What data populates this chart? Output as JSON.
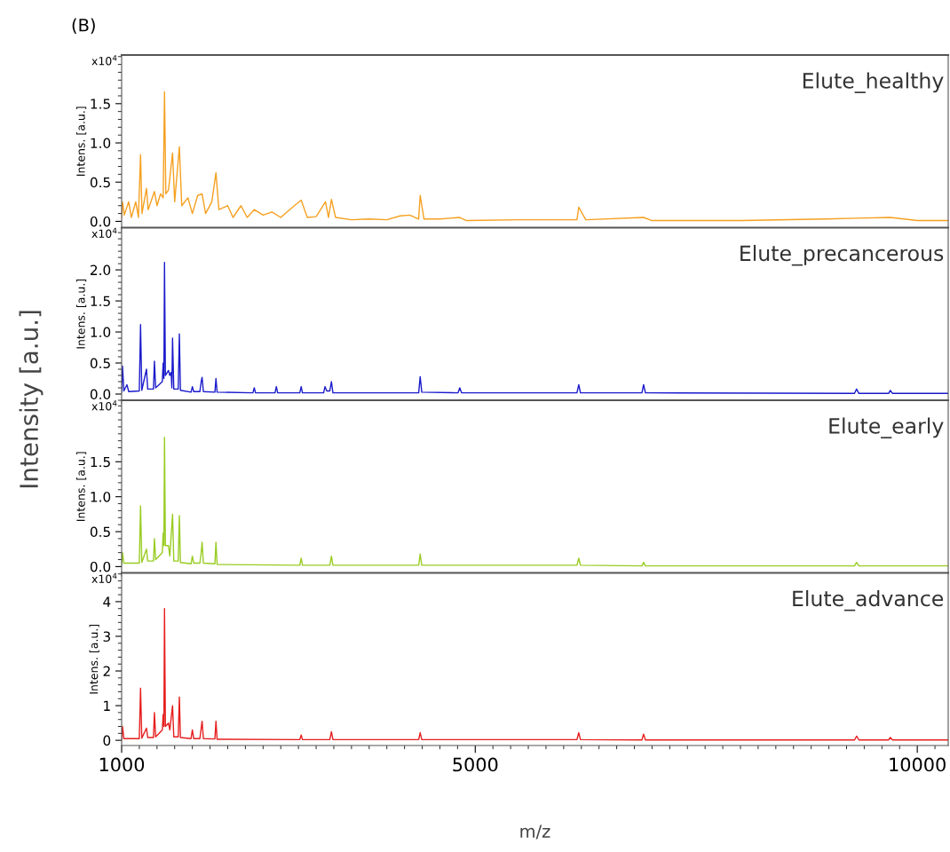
{
  "chart_data": [
    {
      "type": "line",
      "ylabel": "Intens. [a.u.]",
      "annotations": [
        "x10$^{4}$",
        "(B)",
        "Intensity [a.u.]"
      ],
      "xlim": [
        1000,
        10350
      ],
      "ylim": [
        -0.08,
        2.12
      ],
      "yticks": [
        {
          "value": 0,
          "label": "0.0"
        },
        {
          "value": 0.5,
          "label": "0.5"
        },
        {
          "value": 1.0,
          "label": "1.0"
        },
        {
          "value": 1.5,
          "label": "1.5"
        }
      ],
      "tick_labels": "y",
      "series": [
        {
          "name": "Elute_healthy",
          "color": "#f5a020",
          "x": [
            1000,
            1010,
            1030,
            1080,
            1110,
            1160,
            1190,
            1214,
            1230,
            1281,
            1300,
            1371,
            1400,
            1440,
            1470,
            1485,
            1500,
            1530,
            1576,
            1600,
            1653,
            1680,
            1750,
            1800,
            1860,
            1910,
            1950,
            2020,
            2067,
            2100,
            2200,
            2260,
            2350,
            2420,
            2500,
            2600,
            2700,
            2800,
            2900,
            3031,
            3100,
            3200,
            3306,
            3340,
            3373,
            3420,
            3600,
            3800,
            4000,
            4150,
            4260,
            4360,
            4377,
            4420,
            4600,
            4825,
            4900,
            5500,
            6150,
            6171,
            6250,
            6904,
            7000,
            8000,
            8962,
            9313,
            9695,
            10000,
            10350
          ],
          "values": [
            0.05,
            0.25,
            0.08,
            0.25,
            0.05,
            0.25,
            0.05,
            0.85,
            0.1,
            0.42,
            0.15,
            0.38,
            0.2,
            0.35,
            0.3,
            1.65,
            0.35,
            0.4,
            0.87,
            0.25,
            0.95,
            0.2,
            0.3,
            0.1,
            0.33,
            0.35,
            0.1,
            0.25,
            0.62,
            0.15,
            0.2,
            0.05,
            0.2,
            0.05,
            0.15,
            0.08,
            0.12,
            0.05,
            0.15,
            0.27,
            0.05,
            0.06,
            0.25,
            0.05,
            0.28,
            0.05,
            0.02,
            0.03,
            0.02,
            0.07,
            0.08,
            0.03,
            0.33,
            0.03,
            0.03,
            0.05,
            0.01,
            0.02,
            0.02,
            0.18,
            0.02,
            0.05,
            0.01,
            0.01,
            0.03,
            0.04,
            0.05,
            0.01,
            0.01
          ]
        }
      ]
    },
    {
      "type": "line",
      "ylabel": "Intens. [a.u.]",
      "annotations": [
        "x10$^{4}$"
      ],
      "xlim": [
        1000,
        10350
      ],
      "ylim": [
        -0.1,
        2.68
      ],
      "yticks": [
        {
          "value": 0,
          "label": "0.0"
        },
        {
          "value": 0.5,
          "label": "0.5"
        },
        {
          "value": 1.0,
          "label": "1.0"
        },
        {
          "value": 1.5,
          "label": "1.5"
        },
        {
          "value": 2.0,
          "label": "2.0"
        }
      ],
      "tick_labels": "y",
      "series": [
        {
          "name": "Elute_precancerous",
          "color": "#1a1acc",
          "x": [
            1000,
            1010,
            1025,
            1060,
            1080,
            1200,
            1214,
            1228,
            1281,
            1295,
            1360,
            1371,
            1385,
            1460,
            1470,
            1478,
            1485,
            1495,
            1530,
            1545,
            1560,
            1568,
            1576,
            1590,
            1640,
            1653,
            1665,
            1785,
            1800,
            1815,
            1885,
            1900,
            1910,
            1925,
            2055,
            2067,
            2080,
            2485,
            2500,
            2515,
            2735,
            2750,
            2765,
            3015,
            3031,
            3045,
            3285,
            3300,
            3320,
            3355,
            3373,
            3390,
            4360,
            4377,
            4395,
            4805,
            4825,
            4845,
            6150,
            6171,
            6190,
            6885,
            6904,
            6925,
            9290,
            9313,
            9340,
            9675,
            9695,
            9720,
            10350
          ],
          "values": [
            0.03,
            0.45,
            0.05,
            0.15,
            0.04,
            0.05,
            1.12,
            0.06,
            0.4,
            0.08,
            0.08,
            0.53,
            0.1,
            0.2,
            0.5,
            0.25,
            2.12,
            0.3,
            0.38,
            0.3,
            0.35,
            0.1,
            0.9,
            0.08,
            0.08,
            0.97,
            0.06,
            0.03,
            0.12,
            0.04,
            0.04,
            0.2,
            0.27,
            0.04,
            0.03,
            0.25,
            0.03,
            0.02,
            0.1,
            0.02,
            0.02,
            0.12,
            0.02,
            0.02,
            0.12,
            0.02,
            0.02,
            0.12,
            0.05,
            0.05,
            0.2,
            0.02,
            0.02,
            0.28,
            0.03,
            0.02,
            0.1,
            0.02,
            0.02,
            0.15,
            0.02,
            0.02,
            0.15,
            0.02,
            0.01,
            0.08,
            0.01,
            0.01,
            0.06,
            0.01,
            0.01
          ]
        }
      ]
    },
    {
      "type": "line",
      "ylabel": "Intens. [a.u.]",
      "annotations": [
        "x10$^{4}$"
      ],
      "xlim": [
        1000,
        10350
      ],
      "ylim": [
        -0.09,
        2.38
      ],
      "yticks": [
        {
          "value": 0,
          "label": "0.0"
        },
        {
          "value": 0.5,
          "label": "0.5"
        },
        {
          "value": 1.0,
          "label": "1.0"
        },
        {
          "value": 1.5,
          "label": "1.5"
        }
      ],
      "tick_labels": "y",
      "series": [
        {
          "name": "Elute_early",
          "color": "#99cc22",
          "x": [
            1000,
            1010,
            1025,
            1200,
            1214,
            1228,
            1281,
            1295,
            1360,
            1371,
            1385,
            1460,
            1470,
            1478,
            1485,
            1495,
            1530,
            1545,
            1576,
            1590,
            1640,
            1653,
            1665,
            1785,
            1800,
            1815,
            1885,
            1900,
            1910,
            1925,
            2055,
            2067,
            2080,
            3015,
            3031,
            3045,
            3355,
            3373,
            3390,
            4360,
            4377,
            4395,
            6150,
            6171,
            6190,
            6885,
            6904,
            6925,
            9290,
            9313,
            9340,
            10350
          ],
          "values": [
            0.03,
            0.2,
            0.05,
            0.05,
            0.87,
            0.06,
            0.25,
            0.08,
            0.08,
            0.4,
            0.1,
            0.2,
            0.48,
            0.3,
            1.85,
            0.3,
            0.3,
            0.15,
            0.75,
            0.08,
            0.08,
            0.73,
            0.06,
            0.04,
            0.15,
            0.05,
            0.05,
            0.2,
            0.35,
            0.05,
            0.04,
            0.35,
            0.03,
            0.02,
            0.12,
            0.02,
            0.02,
            0.15,
            0.02,
            0.02,
            0.18,
            0.02,
            0.02,
            0.12,
            0.02,
            0.01,
            0.06,
            0.01,
            0.01,
            0.06,
            0.01,
            0.01
          ]
        }
      ]
    },
    {
      "type": "line",
      "ylabel": "Intens. [a.u.]",
      "xlabel": "m/z",
      "annotations": [
        "x10$^{4}$"
      ],
      "xlim": [
        1000,
        10350
      ],
      "ylim": [
        -0.15,
        4.83
      ],
      "xticks": [
        1000,
        5000,
        10000
      ],
      "yticks": [
        0,
        1,
        2,
        3,
        4
      ],
      "series": [
        {
          "name": "Elute_advance",
          "color": "#e61e1e",
          "x": [
            1000,
            1010,
            1025,
            1200,
            1214,
            1228,
            1281,
            1295,
            1360,
            1371,
            1385,
            1460,
            1470,
            1478,
            1485,
            1495,
            1530,
            1545,
            1576,
            1590,
            1640,
            1653,
            1665,
            1785,
            1800,
            1815,
            1885,
            1900,
            1910,
            1925,
            2055,
            2067,
            2080,
            3015,
            3031,
            3045,
            3355,
            3373,
            3390,
            4360,
            4377,
            4395,
            6150,
            6171,
            6190,
            6885,
            6904,
            6925,
            9290,
            9313,
            9340,
            9675,
            9695,
            9720,
            10350
          ],
          "values": [
            0.03,
            0.4,
            0.05,
            0.05,
            1.5,
            0.06,
            0.35,
            0.08,
            0.08,
            0.8,
            0.1,
            0.3,
            0.75,
            0.4,
            3.8,
            0.4,
            0.5,
            0.3,
            1.0,
            0.1,
            0.1,
            1.25,
            0.08,
            0.05,
            0.3,
            0.05,
            0.05,
            0.35,
            0.55,
            0.05,
            0.04,
            0.55,
            0.03,
            0.02,
            0.15,
            0.02,
            0.02,
            0.25,
            0.02,
            0.02,
            0.22,
            0.02,
            0.02,
            0.22,
            0.02,
            0.01,
            0.18,
            0.01,
            0.01,
            0.12,
            0.01,
            0.01,
            0.08,
            0.01,
            0.01
          ]
        }
      ]
    }
  ]
}
